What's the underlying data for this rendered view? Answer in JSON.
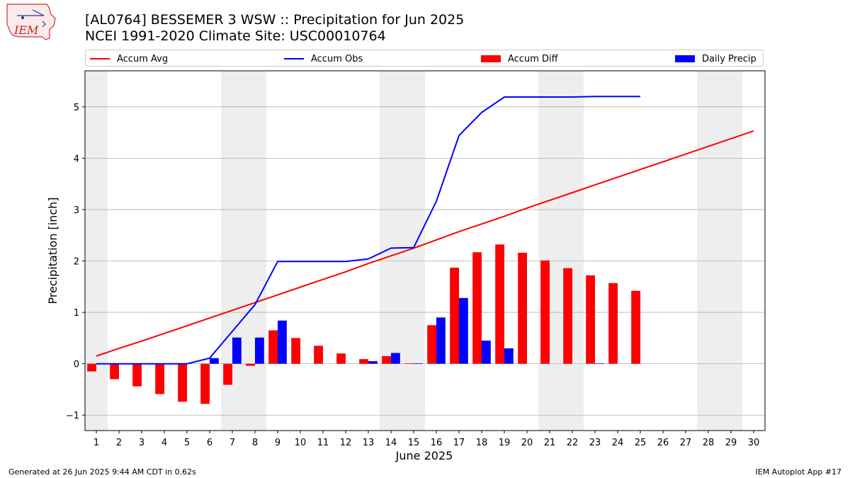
{
  "header": {
    "title_line1": "[AL0764] BESSEMER 3 WSW :: Precipitation for Jun 2025",
    "title_line2": "NCEI 1991-2020 Climate Site: USC00010764",
    "logo_text": "IEM"
  },
  "footer": {
    "generated": "Generated at 26 Jun 2025 9:44 AM CDT in 0.62s",
    "app": "IEM Autoplot App #17"
  },
  "colors": {
    "avg": "#ff0000",
    "obs": "#0000ff",
    "diff": "#ff0000",
    "daily": "#0000ff",
    "weekend_shade": "#eeeeee",
    "grid": "#b0b0b0"
  },
  "chart_data": {
    "type": "bar",
    "xlabel": "June 2025",
    "ylabel": "Precipitation [inch]",
    "xlim": [
      0.5,
      30.5
    ],
    "ylim": [
      -1.3,
      5.7
    ],
    "yticks": [
      -1,
      0,
      1,
      2,
      3,
      4,
      5
    ],
    "ytick_labels": [
      "−1",
      "0",
      "1",
      "2",
      "3",
      "4",
      "5"
    ],
    "days": [
      1,
      2,
      3,
      4,
      5,
      6,
      7,
      8,
      9,
      10,
      11,
      12,
      13,
      14,
      15,
      16,
      17,
      18,
      19,
      20,
      21,
      22,
      23,
      24,
      25,
      26,
      27,
      28,
      29,
      30
    ],
    "weekend_days": [
      1,
      7,
      8,
      14,
      15,
      21,
      22,
      28,
      29
    ],
    "grid": "horizontal",
    "legend_position": "top",
    "series": [
      {
        "name": "Accum Avg",
        "kind": "line",
        "x": [
          1,
          2,
          3,
          4,
          5,
          6,
          7,
          8,
          9,
          10,
          11,
          12,
          13,
          14,
          15,
          16,
          17,
          18,
          19,
          20,
          21,
          22,
          23,
          24,
          25,
          26,
          27,
          28,
          29,
          30
        ],
        "values": [
          0.15,
          0.3,
          0.44,
          0.59,
          0.74,
          0.89,
          1.04,
          1.19,
          1.34,
          1.49,
          1.64,
          1.79,
          1.95,
          2.1,
          2.25,
          2.41,
          2.57,
          2.72,
          2.87,
          3.03,
          3.18,
          3.33,
          3.48,
          3.63,
          3.78,
          3.93,
          4.08,
          4.23,
          4.38,
          4.53
        ]
      },
      {
        "name": "Accum Obs",
        "kind": "line",
        "x": [
          1,
          2,
          3,
          4,
          5,
          6,
          7,
          8,
          9,
          10,
          11,
          12,
          13,
          14,
          15,
          16,
          17,
          18,
          19,
          20,
          21,
          22,
          23,
          24,
          25
        ],
        "values": [
          0.0,
          0.0,
          0.0,
          0.0,
          0.0,
          0.11,
          0.63,
          1.15,
          1.99,
          1.99,
          1.99,
          1.99,
          2.04,
          2.25,
          2.26,
          3.16,
          4.44,
          4.89,
          5.19,
          5.19,
          5.19,
          5.19,
          5.2,
          5.2,
          5.2
        ]
      },
      {
        "name": "Accum Diff",
        "kind": "bar",
        "x": [
          1,
          2,
          3,
          4,
          5,
          6,
          7,
          8,
          9,
          10,
          11,
          12,
          13,
          14,
          15,
          16,
          17,
          18,
          19,
          20,
          21,
          22,
          23,
          24,
          25
        ],
        "values": [
          -0.15,
          -0.3,
          -0.44,
          -0.59,
          -0.74,
          -0.78,
          -0.41,
          -0.04,
          0.65,
          0.5,
          0.35,
          0.2,
          0.09,
          0.15,
          0.01,
          0.75,
          1.87,
          2.17,
          2.32,
          2.16,
          2.01,
          1.86,
          1.72,
          1.57,
          1.42
        ]
      },
      {
        "name": "Daily Precip",
        "kind": "bar",
        "x": [
          1,
          2,
          3,
          4,
          5,
          6,
          7,
          8,
          9,
          10,
          11,
          12,
          13,
          14,
          15,
          16,
          17,
          18,
          19,
          20,
          21,
          22,
          23,
          24,
          25
        ],
        "values": [
          0,
          0,
          0,
          0,
          0,
          0.11,
          0.51,
          0.51,
          0.84,
          0,
          0,
          0,
          0.05,
          0.21,
          0.01,
          0.9,
          1.28,
          0.45,
          0.3,
          0,
          0,
          0,
          0.01,
          0,
          0
        ]
      }
    ]
  }
}
